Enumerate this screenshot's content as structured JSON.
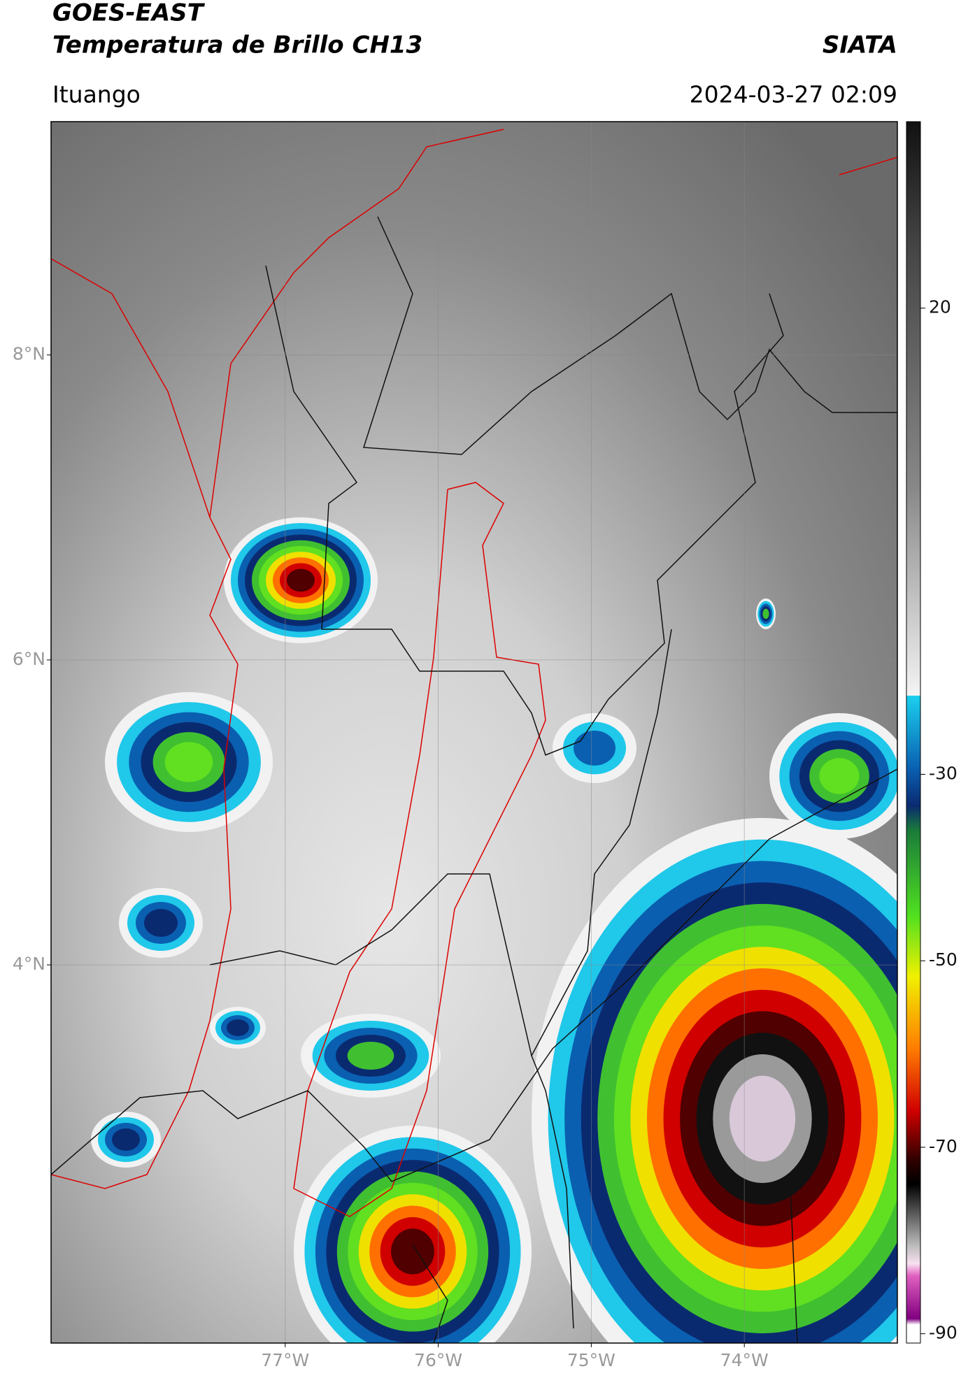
{
  "header": {
    "title": "GOES-EAST",
    "subtitle": "Temperatura de Brillo CH13",
    "source": "SIATA",
    "location": "Ituango",
    "datetime": "2024-03-27 02:09"
  },
  "map": {
    "xlim": [
      -78.53,
      -73.0
    ],
    "ylim": [
      1.52,
      9.53
    ],
    "xticks": [
      {
        "value": -77,
        "label": "77°W"
      },
      {
        "value": -76,
        "label": "76°W"
      },
      {
        "value": -75,
        "label": "75°W"
      },
      {
        "value": -74,
        "label": "74°W"
      }
    ],
    "yticks": [
      {
        "value": 8,
        "label": "8°N"
      },
      {
        "value": 6,
        "label": "6°N"
      },
      {
        "value": 4,
        "label": "4°N"
      }
    ]
  },
  "colorbar": {
    "lim": [
      -91,
      40
    ],
    "ticks": [
      20,
      -30,
      -50,
      -70,
      -90
    ]
  }
}
